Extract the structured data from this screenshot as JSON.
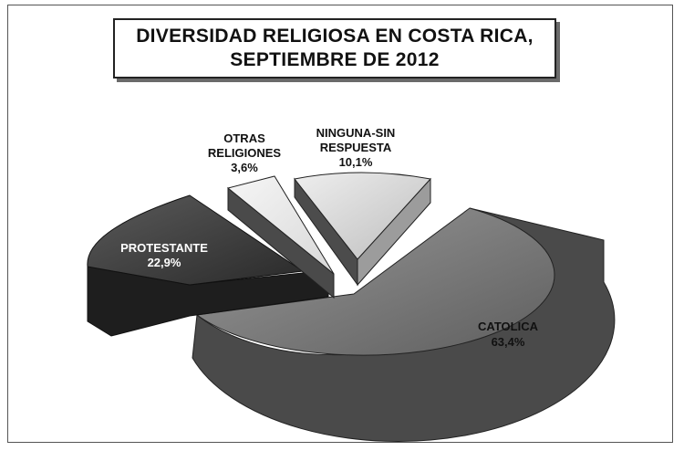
{
  "chart_data": {
    "type": "pie",
    "title_line1": "DIVERSIDAD RELIGIOSA EN COSTA RICA,",
    "title_line2": "SEPTIEMBRE DE 2012",
    "slices": [
      {
        "label_lines": [
          "CATOLICA"
        ],
        "value_label": "63,4%",
        "value": 63.4,
        "color": "#7a7a7a"
      },
      {
        "label_lines": [
          "PROTESTANTE"
        ],
        "value_label": "22,9%",
        "value": 22.9,
        "color": "#3c3c3c"
      },
      {
        "label_lines": [
          "OTRAS",
          "RELIGIONES"
        ],
        "value_label": "3,6%",
        "value": 3.6,
        "color": "#ececec"
      },
      {
        "label_lines": [
          "NINGUNA-SIN",
          "RESPUESTA"
        ],
        "value_label": "10,1%",
        "value": 10.1,
        "color": "#d6d6d6"
      }
    ],
    "exploded": true,
    "style": "3d",
    "legend": "none"
  }
}
